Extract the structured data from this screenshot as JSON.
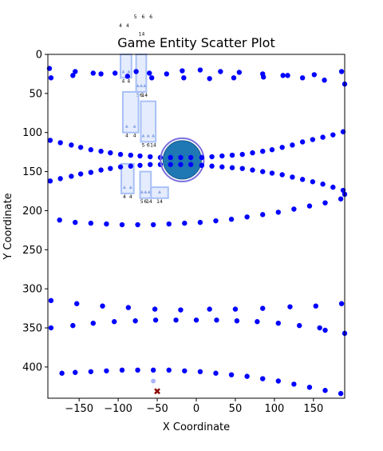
{
  "chart_data": {
    "type": "scatter",
    "title": "Game Entity Scatter Plot",
    "xlabel": "X Coordinate",
    "ylabel": "Y Coordinate",
    "xlim": [
      -190,
      190
    ],
    "ylim": [
      440,
      0
    ],
    "y_inverted": true,
    "xticks": [
      -150,
      -100,
      -50,
      0,
      50,
      100,
      150
    ],
    "yticks": [
      0,
      50,
      100,
      150,
      200,
      250,
      300,
      350,
      400
    ],
    "grid": false,
    "colors": {
      "point": "#0000ff",
      "panel": "#cfdcfb",
      "panel_edge": "#a8c0f8",
      "marker": "#8ea9e8",
      "circle_fill": "#1f77b4",
      "circle_ring": "#7b6fe0",
      "cross": "#8b0000",
      "faded_point": "#aab5ff"
    },
    "series": [
      {
        "values": [
          [
            -188,
            18
          ],
          [
            -186,
            30
          ],
          [
            -158,
            27
          ],
          [
            -155,
            22
          ],
          [
            -132,
            24
          ],
          [
            -122,
            25
          ],
          [
            -104,
            24
          ],
          [
            -88,
            28
          ],
          [
            -77,
            22
          ],
          [
            -60,
            24
          ],
          [
            -57,
            30
          ],
          [
            -38,
            25
          ],
          [
            -18,
            21
          ],
          [
            -16,
            30
          ],
          [
            5,
            20
          ],
          [
            17,
            31
          ],
          [
            31,
            22
          ],
          [
            48,
            30
          ],
          [
            55,
            23
          ],
          [
            85,
            25
          ],
          [
            86,
            29
          ],
          [
            111,
            27
          ],
          [
            117,
            27
          ],
          [
            136,
            30
          ],
          [
            151,
            26
          ],
          [
            164,
            33
          ],
          [
            186,
            22
          ],
          [
            190,
            38
          ]
        ]
      },
      {
        "values": [
          [
            -187,
            110
          ],
          [
            -174,
            113
          ],
          [
            -160,
            116
          ],
          [
            -148,
            119
          ],
          [
            -135,
            122
          ],
          [
            -122,
            124
          ],
          [
            -110,
            126
          ],
          [
            -97,
            128
          ],
          [
            -84,
            129
          ],
          [
            -72,
            130
          ],
          [
            -59,
            131
          ],
          [
            -46,
            132
          ],
          [
            -33,
            132
          ],
          [
            -20,
            132
          ],
          [
            -7,
            132
          ],
          [
            7,
            132
          ],
          [
            20,
            131
          ],
          [
            33,
            130
          ],
          [
            46,
            129
          ],
          [
            59,
            128
          ],
          [
            72,
            126
          ],
          [
            85,
            124
          ],
          [
            97,
            122
          ],
          [
            110,
            119
          ],
          [
            123,
            116
          ],
          [
            136,
            112
          ],
          [
            149,
            109
          ],
          [
            162,
            106
          ],
          [
            175,
            103
          ],
          [
            188,
            99
          ]
        ]
      },
      {
        "values": [
          [
            -187,
            162
          ],
          [
            -174,
            159
          ],
          [
            -160,
            156
          ],
          [
            -148,
            153
          ],
          [
            -135,
            151
          ],
          [
            -122,
            148
          ],
          [
            -110,
            146
          ],
          [
            -97,
            144
          ],
          [
            -84,
            143
          ],
          [
            -72,
            142
          ],
          [
            -59,
            141
          ],
          [
            -46,
            141
          ],
          [
            -33,
            141
          ],
          [
            -20,
            141
          ],
          [
            -7,
            141
          ],
          [
            7,
            142
          ],
          [
            20,
            143
          ],
          [
            33,
            144
          ],
          [
            46,
            145
          ],
          [
            59,
            146
          ],
          [
            72,
            148
          ],
          [
            85,
            150
          ],
          [
            97,
            152
          ],
          [
            110,
            154
          ],
          [
            123,
            157
          ],
          [
            136,
            160
          ],
          [
            149,
            163
          ],
          [
            162,
            166
          ],
          [
            175,
            170
          ],
          [
            188,
            174
          ],
          [
            190,
            179
          ]
        ]
      },
      {
        "values": [
          [
            -175,
            212
          ],
          [
            -155,
            215
          ],
          [
            -135,
            216
          ],
          [
            -115,
            217
          ],
          [
            -95,
            218
          ],
          [
            -75,
            218
          ],
          [
            -55,
            218
          ],
          [
            -35,
            217
          ],
          [
            -15,
            216
          ],
          [
            5,
            215
          ],
          [
            25,
            213
          ],
          [
            45,
            211
          ],
          [
            65,
            208
          ],
          [
            85,
            205
          ],
          [
            105,
            202
          ],
          [
            125,
            198
          ],
          [
            145,
            194
          ],
          [
            165,
            190
          ],
          [
            185,
            185
          ]
        ]
      },
      {
        "values": [
          [
            -186,
            315
          ],
          [
            -153,
            319
          ],
          [
            -120,
            322
          ],
          [
            -87,
            324
          ],
          [
            -53,
            326
          ],
          [
            -20,
            327
          ],
          [
            17,
            326
          ],
          [
            50,
            326
          ],
          [
            85,
            325
          ],
          [
            120,
            323
          ],
          [
            153,
            322
          ],
          [
            186,
            319
          ]
        ]
      },
      {
        "values": [
          [
            -186,
            350
          ],
          [
            -158,
            347
          ],
          [
            -132,
            344
          ],
          [
            -105,
            342
          ],
          [
            -78,
            341
          ],
          [
            -52,
            340
          ],
          [
            -26,
            340
          ],
          [
            0,
            340
          ],
          [
            26,
            340
          ],
          [
            52,
            341
          ],
          [
            78,
            342
          ],
          [
            105,
            344
          ],
          [
            132,
            347
          ],
          [
            158,
            350
          ],
          [
            165,
            353
          ],
          [
            190,
            357
          ]
        ]
      },
      {
        "values": [
          [
            -172,
            408
          ],
          [
            -155,
            407
          ],
          [
            -135,
            406
          ],
          [
            -115,
            405
          ],
          [
            -95,
            404
          ],
          [
            -75,
            404
          ],
          [
            -55,
            404
          ],
          [
            -35,
            404
          ],
          [
            -15,
            405
          ],
          [
            5,
            406
          ],
          [
            25,
            408
          ],
          [
            45,
            410
          ],
          [
            65,
            412
          ],
          [
            85,
            415
          ],
          [
            105,
            418
          ],
          [
            125,
            422
          ],
          [
            145,
            426
          ],
          [
            165,
            430
          ],
          [
            185,
            434
          ]
        ]
      }
    ],
    "overlay_panels": [
      {
        "x0": -97,
        "x1": -83,
        "y0": 0,
        "y1": 30,
        "labels": [
          "4",
          "4"
        ]
      },
      {
        "x0": -77,
        "x1": -64,
        "y0": 0,
        "y1": 48,
        "labels": [
          "5",
          "6",
          "14"
        ]
      },
      {
        "x0": -94,
        "x1": -74,
        "y0": 48,
        "y1": 100,
        "labels": [
          "4",
          "4"
        ]
      },
      {
        "x0": -71,
        "x1": -52,
        "y0": 60,
        "y1": 112,
        "labels": [
          "5",
          "6",
          "14"
        ]
      },
      {
        "x0": -96,
        "x1": -80,
        "y0": 140,
        "y1": 178,
        "labels": [
          "4",
          "4"
        ]
      },
      {
        "x0": -72,
        "x1": -58,
        "y0": 150,
        "y1": 184,
        "labels": [
          "5",
          "6",
          "14"
        ]
      },
      {
        "x0": -58,
        "x1": -36,
        "y0": 170,
        "y1": 184,
        "labels": [
          "14"
        ]
      }
    ],
    "tiny_labels": [
      {
        "x": -97,
        "y": -35,
        "text": "4"
      },
      {
        "x": -88,
        "y": -35,
        "text": "4"
      },
      {
        "x": -78,
        "y": -46,
        "text": "5"
      },
      {
        "x": -68,
        "y": -46,
        "text": "6"
      },
      {
        "x": -58,
        "y": -46,
        "text": "6"
      },
      {
        "x": -70,
        "y": -24,
        "text": "14"
      }
    ],
    "big_circle": {
      "x": -18,
      "y": 135,
      "r": 24
    },
    "faded_point": {
      "x": -55,
      "y": 418
    },
    "cross_marker": {
      "x": -50,
      "y": 431
    }
  }
}
